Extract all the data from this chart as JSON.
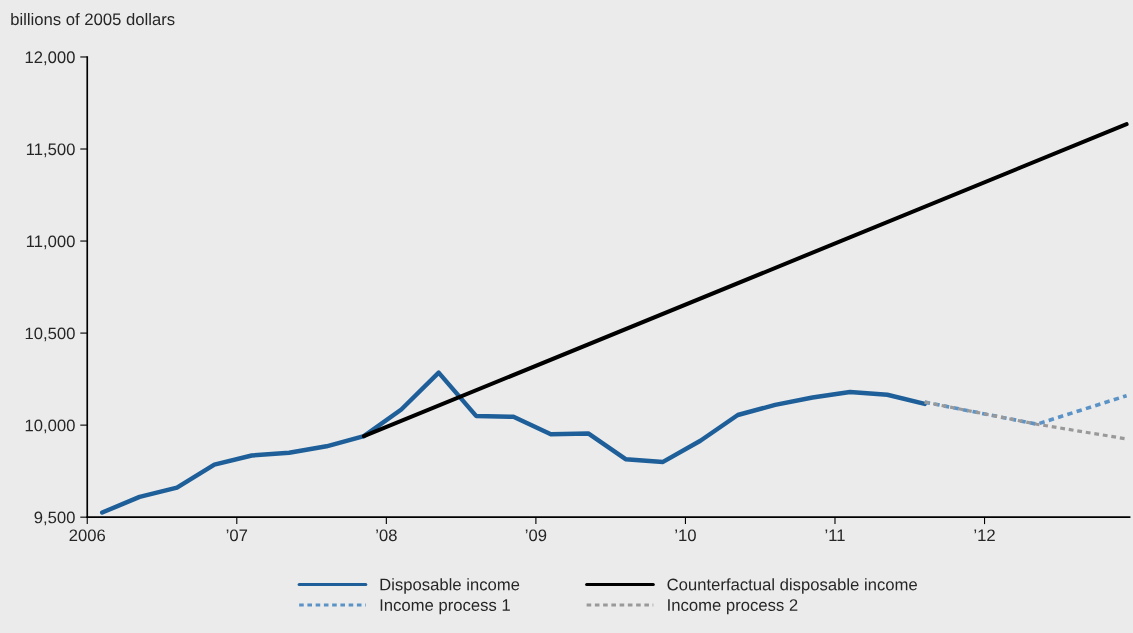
{
  "chart_data": {
    "type": "line",
    "ylabel": "billions of 2005 dollars",
    "xlim": [
      2006,
      2012.97
    ],
    "ylim": [
      9500,
      12000
    ],
    "xticks": [
      {
        "value": 2006,
        "label": "2006"
      },
      {
        "value": 2007,
        "label": "’07"
      },
      {
        "value": 2008,
        "label": "’08"
      },
      {
        "value": 2009,
        "label": "’09"
      },
      {
        "value": 2010,
        "label": "’10"
      },
      {
        "value": 2011,
        "label": "’11"
      },
      {
        "value": 2012,
        "label": "’12"
      }
    ],
    "yticks": [
      {
        "value": 9500,
        "label": "9,500"
      },
      {
        "value": 10000,
        "label": "10,000"
      },
      {
        "value": 10500,
        "label": "10,500"
      },
      {
        "value": 11000,
        "label": "11,000"
      },
      {
        "value": 11500,
        "label": "11,500"
      },
      {
        "value": 12000,
        "label": "12,000"
      }
    ],
    "grid": false,
    "legend": "bottom",
    "marker": "none",
    "series": [
      {
        "name": "Disposable income",
        "color": "#1f5f99",
        "line_style": "solid",
        "x": [
          2006.1,
          2006.35,
          2006.6,
          2006.85,
          2007.1,
          2007.35,
          2007.6,
          2007.85,
          2008.1,
          2008.35,
          2008.6,
          2008.85,
          2009.1,
          2009.35,
          2009.6,
          2009.85,
          2010.1,
          2010.35,
          2010.6,
          2010.85,
          2011.1,
          2011.35,
          2011.6
        ],
        "values": [
          9525,
          9610,
          9660,
          9785,
          9835,
          9850,
          9885,
          9940,
          10085,
          10285,
          10050,
          10045,
          9950,
          9955,
          9815,
          9800,
          9915,
          10055,
          10110,
          10150,
          10180,
          10165,
          10115
        ]
      },
      {
        "name": "Counterfactual disposable income",
        "color": "#000000",
        "line_style": "solid",
        "x": [
          2007.85,
          2012.95
        ],
        "values": [
          9940,
          11635
        ]
      },
      {
        "name": "Income process 1",
        "color": "#5b93c7",
        "line_style": "dotted",
        "x": [
          2011.6,
          2012.35,
          2012.95
        ],
        "values": [
          10125,
          10005,
          10160
        ]
      },
      {
        "name": "Income process 2",
        "color": "#999999",
        "line_style": "dotted",
        "x": [
          2011.6,
          2012.35,
          2012.95
        ],
        "values": [
          10125,
          10005,
          9925
        ]
      }
    ]
  }
}
